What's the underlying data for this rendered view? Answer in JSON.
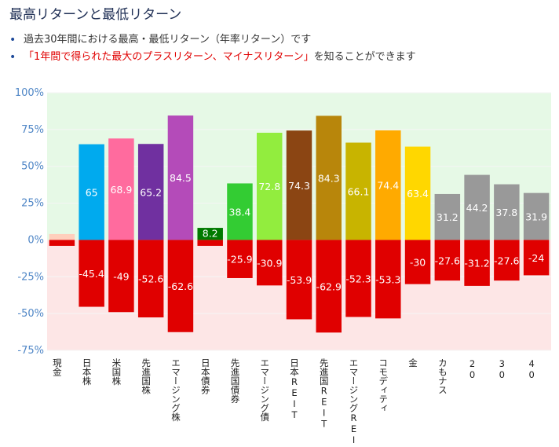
{
  "title": "最高リターンと最低リターン",
  "bullets": [
    {
      "text": "過去30年間における最高・最低リターン（年率リターン）です",
      "highlight": "",
      "suffix": ""
    },
    {
      "text": "",
      "highlight": "「1年間で得られた最大のプラスリターン、マイナスリターン」",
      "suffix": "を知ることができます"
    }
  ],
  "chart_data": {
    "type": "bar",
    "ylim": [
      -75,
      100
    ],
    "yticks": [
      100,
      75,
      50,
      25,
      0,
      -25,
      -50,
      -75
    ],
    "ytick_labels": [
      "100%",
      "75%",
      "50%",
      "25%",
      "0%",
      "-25%",
      "-50%",
      "-75%"
    ],
    "positive_band_color": "#e6f9e6",
    "negative_band_color": "#fde6e6",
    "categories": [
      "現金",
      "日本株",
      "米国株",
      "先進国株",
      "エマージング株",
      "日本債券",
      "先進国債券",
      "エマージング債",
      "日本REIT",
      "先進国REIT",
      "エマージングREIT",
      "コモディティ",
      "金",
      "カもナス",
      "20",
      "30",
      "40"
    ],
    "series": [
      {
        "values": [
          4,
          65,
          68.9,
          65.2,
          84.5,
          8.2,
          38.4,
          72.8,
          74.3,
          84.3,
          66.1,
          74.4,
          63.4,
          31.2,
          44.2,
          37.8,
          31.9
        ],
        "labels": [
          "",
          "65",
          "68.9",
          "65.2",
          "84.5",
          "8.2",
          "38.4",
          "72.8",
          "74.3",
          "84.3",
          "66.1",
          "74.4",
          "63.4",
          "31.2",
          "44.2",
          "37.8",
          "31.9"
        ],
        "colors": [
          "#ffcfbd",
          "#00aaee",
          "#ff6b9e",
          "#7030a0",
          "#b44bb9",
          "#007a00",
          "#33cc33",
          "#92ed3e",
          "#8b4513",
          "#b8860b",
          "#c8b400",
          "#ffaa00",
          "#ffd700",
          "#999999",
          "#999999",
          "#999999",
          "#999999"
        ]
      },
      {
        "values": [
          -4,
          -45.4,
          -49,
          -52.6,
          -62.6,
          -4,
          -25.9,
          -30.9,
          -53.9,
          -62.9,
          -52.3,
          -53.3,
          -30,
          -27.6,
          -31.2,
          -27.6,
          -24
        ],
        "labels": [
          "",
          "-45.4",
          "-49",
          "-52.6",
          "-62.6",
          "",
          "-25.9",
          "-30.9",
          "-53.9",
          "-62.9",
          "-52.3",
          "-53.3",
          "-30",
          "-27.6",
          "-31.2",
          "-27.6",
          "-24"
        ],
        "color": "#e00000"
      }
    ]
  }
}
